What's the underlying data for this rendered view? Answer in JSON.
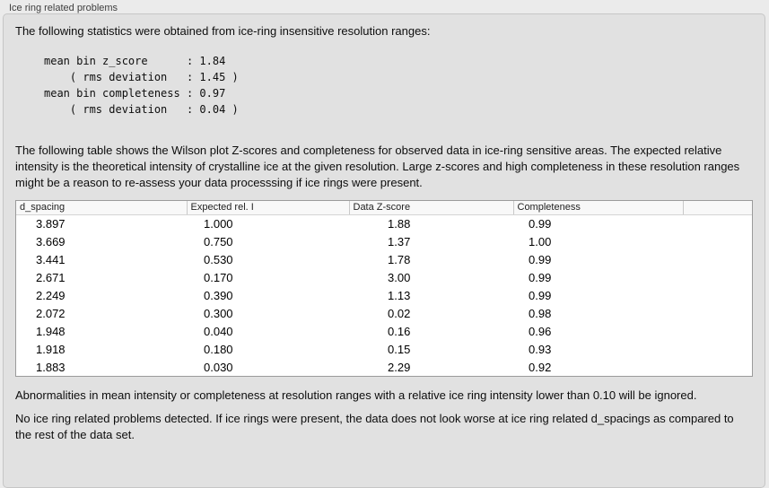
{
  "panel": {
    "title": "Ice ring related problems"
  },
  "stats": {
    "intro": "The following statistics were obtained from ice-ring insensitive resolution ranges:",
    "lines": [
      "mean bin z_score      : 1.84",
      "    ( rms deviation   : 1.45 )",
      "mean bin completeness : 0.97",
      "    ( rms deviation   : 0.04 )"
    ]
  },
  "description": "The following table shows the Wilson plot Z-scores and completeness for observed data in ice-ring sensitive areas. The expected relative intensity is the theoretical intensity of crystalline ice at the given resolution. Large z-scores and high completeness in these resolution ranges might be a reason to re-assess your data processsing if ice rings were present.",
  "table": {
    "columns": [
      "d_spacing",
      "Expected rel. I",
      "Data Z-score",
      "Completeness"
    ],
    "rows": [
      [
        "3.897",
        "1.000",
        "1.88",
        "0.99"
      ],
      [
        "3.669",
        "0.750",
        "1.37",
        "1.00"
      ],
      [
        "3.441",
        "0.530",
        "1.78",
        "0.99"
      ],
      [
        "2.671",
        "0.170",
        "3.00",
        "0.99"
      ],
      [
        "2.249",
        "0.390",
        "1.13",
        "0.99"
      ],
      [
        "2.072",
        "0.300",
        "0.02",
        "0.98"
      ],
      [
        "1.948",
        "0.040",
        "0.16",
        "0.96"
      ],
      [
        "1.918",
        "0.180",
        "0.15",
        "0.93"
      ],
      [
        "1.883",
        "0.030",
        "2.29",
        "0.92"
      ]
    ]
  },
  "notes": {
    "ignore_note": "Abnormalities in mean intensity or completeness at resolution ranges with a relative ice ring intensity lower than 0.10 will be ignored.",
    "conclusion": "No ice ring related problems detected. If ice rings were present, the data does not look worse at ice ring related d_spacings as compared to the rest of the data set."
  },
  "colors": {
    "page_background": "#ebebeb",
    "groupbox_background": "#e1e1e1",
    "groupbox_border": "#c6c6c6",
    "table_background": "#ffffff",
    "table_border": "#9b9b9b",
    "header_background": "#f8f8f8",
    "text": "#0d0d0d"
  }
}
